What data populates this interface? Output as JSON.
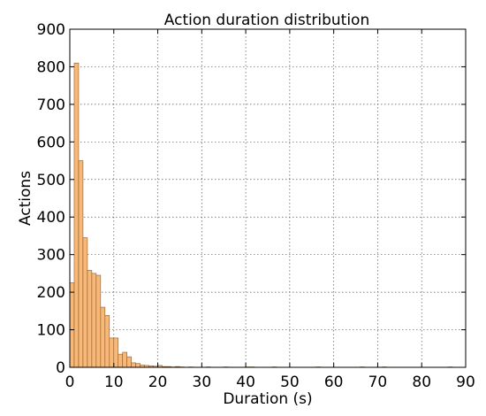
{
  "chart_data": {
    "type": "bar",
    "title": "Action duration distribution",
    "xlabel": "Duration (s)",
    "ylabel": "Actions",
    "xlim": [
      0,
      90
    ],
    "ylim": [
      0,
      900
    ],
    "xticks": [
      0,
      10,
      20,
      30,
      40,
      50,
      60,
      70,
      80,
      90
    ],
    "yticks": [
      0,
      100,
      200,
      300,
      400,
      500,
      600,
      700,
      800,
      900
    ],
    "grid": true,
    "bar_color": "#f8b878",
    "bin_width": 1,
    "bins": [
      {
        "x": 0,
        "value": 225
      },
      {
        "x": 1,
        "value": 810
      },
      {
        "x": 2,
        "value": 550
      },
      {
        "x": 3,
        "value": 345
      },
      {
        "x": 4,
        "value": 258
      },
      {
        "x": 5,
        "value": 250
      },
      {
        "x": 6,
        "value": 245
      },
      {
        "x": 7,
        "value": 160
      },
      {
        "x": 8,
        "value": 138
      },
      {
        "x": 9,
        "value": 78
      },
      {
        "x": 10,
        "value": 78
      },
      {
        "x": 11,
        "value": 35
      },
      {
        "x": 12,
        "value": 40
      },
      {
        "x": 13,
        "value": 28
      },
      {
        "x": 14,
        "value": 12
      },
      {
        "x": 15,
        "value": 10
      },
      {
        "x": 16,
        "value": 6
      },
      {
        "x": 17,
        "value": 5
      },
      {
        "x": 18,
        "value": 4
      },
      {
        "x": 19,
        "value": 3
      },
      {
        "x": 20,
        "value": 5
      },
      {
        "x": 21,
        "value": 2
      },
      {
        "x": 22,
        "value": 2
      },
      {
        "x": 23,
        "value": 1
      },
      {
        "x": 24,
        "value": 2
      },
      {
        "x": 25,
        "value": 1
      },
      {
        "x": 27,
        "value": 1
      },
      {
        "x": 31,
        "value": 1
      },
      {
        "x": 35,
        "value": 1
      },
      {
        "x": 40,
        "value": 1
      },
      {
        "x": 41,
        "value": 1
      },
      {
        "x": 46,
        "value": 1
      },
      {
        "x": 56,
        "value": 1
      },
      {
        "x": 66,
        "value": 1
      },
      {
        "x": 71,
        "value": 1
      },
      {
        "x": 86,
        "value": 1
      }
    ]
  }
}
